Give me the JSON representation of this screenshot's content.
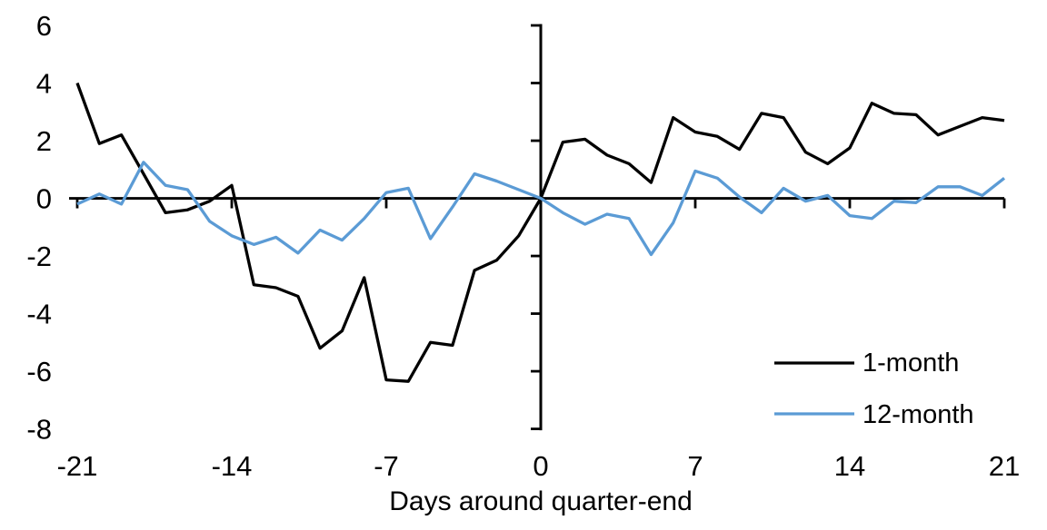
{
  "chart_data": {
    "type": "line",
    "xlabel": "Days around quarter-end",
    "xlim": [
      -21,
      21
    ],
    "ylim": [
      -8,
      6
    ],
    "x_ticks": [
      -21,
      -14,
      -7,
      0,
      7,
      14,
      21
    ],
    "y_ticks": [
      6,
      4,
      2,
      0,
      -2,
      -4,
      -6,
      -8
    ],
    "grid": false,
    "legend_position": "inside-bottom-right",
    "x": [
      -21,
      -20,
      -19,
      -18,
      -17,
      -16,
      -15,
      -14,
      -13,
      -12,
      -11,
      -10,
      -9,
      -8,
      -7,
      -6,
      -5,
      -4,
      -3,
      -2,
      -1,
      0,
      1,
      2,
      3,
      4,
      5,
      6,
      7,
      8,
      9,
      10,
      11,
      12,
      13,
      14,
      15,
      16,
      17,
      18,
      19,
      20,
      21
    ],
    "series": [
      {
        "name": "1-month",
        "color": "#000000",
        "values": [
          4.0,
          1.9,
          2.2,
          0.85,
          -0.5,
          -0.4,
          -0.1,
          0.45,
          -3.0,
          -3.1,
          -3.4,
          -5.2,
          -4.6,
          -2.75,
          -6.3,
          -6.35,
          -5.0,
          -5.1,
          -2.5,
          -2.15,
          -1.3,
          0.0,
          1.95,
          2.05,
          1.5,
          1.2,
          0.55,
          2.8,
          2.3,
          2.15,
          1.7,
          2.95,
          2.8,
          1.6,
          1.2,
          1.75,
          3.3,
          2.95,
          2.9,
          2.2,
          2.5,
          2.8,
          2.7
        ]
      },
      {
        "name": "12-month",
        "color": "#5B9BD5",
        "values": [
          -0.2,
          0.15,
          -0.2,
          1.25,
          0.45,
          0.3,
          -0.8,
          -1.3,
          -1.6,
          -1.35,
          -1.9,
          -1.1,
          -1.45,
          -0.7,
          0.2,
          0.35,
          -1.4,
          -0.3,
          0.85,
          0.6,
          0.3,
          0.0,
          -0.5,
          -0.9,
          -0.55,
          -0.7,
          -1.95,
          -0.85,
          0.95,
          0.7,
          0.05,
          -0.5,
          0.35,
          -0.1,
          0.1,
          -0.6,
          -0.7,
          -0.1,
          -0.15,
          0.4,
          0.4,
          0.1,
          0.7
        ]
      }
    ]
  },
  "colors": {
    "background": "#ffffff",
    "axis": "#000000",
    "series_1_month": "#000000",
    "series_12_month": "#5B9BD5"
  }
}
